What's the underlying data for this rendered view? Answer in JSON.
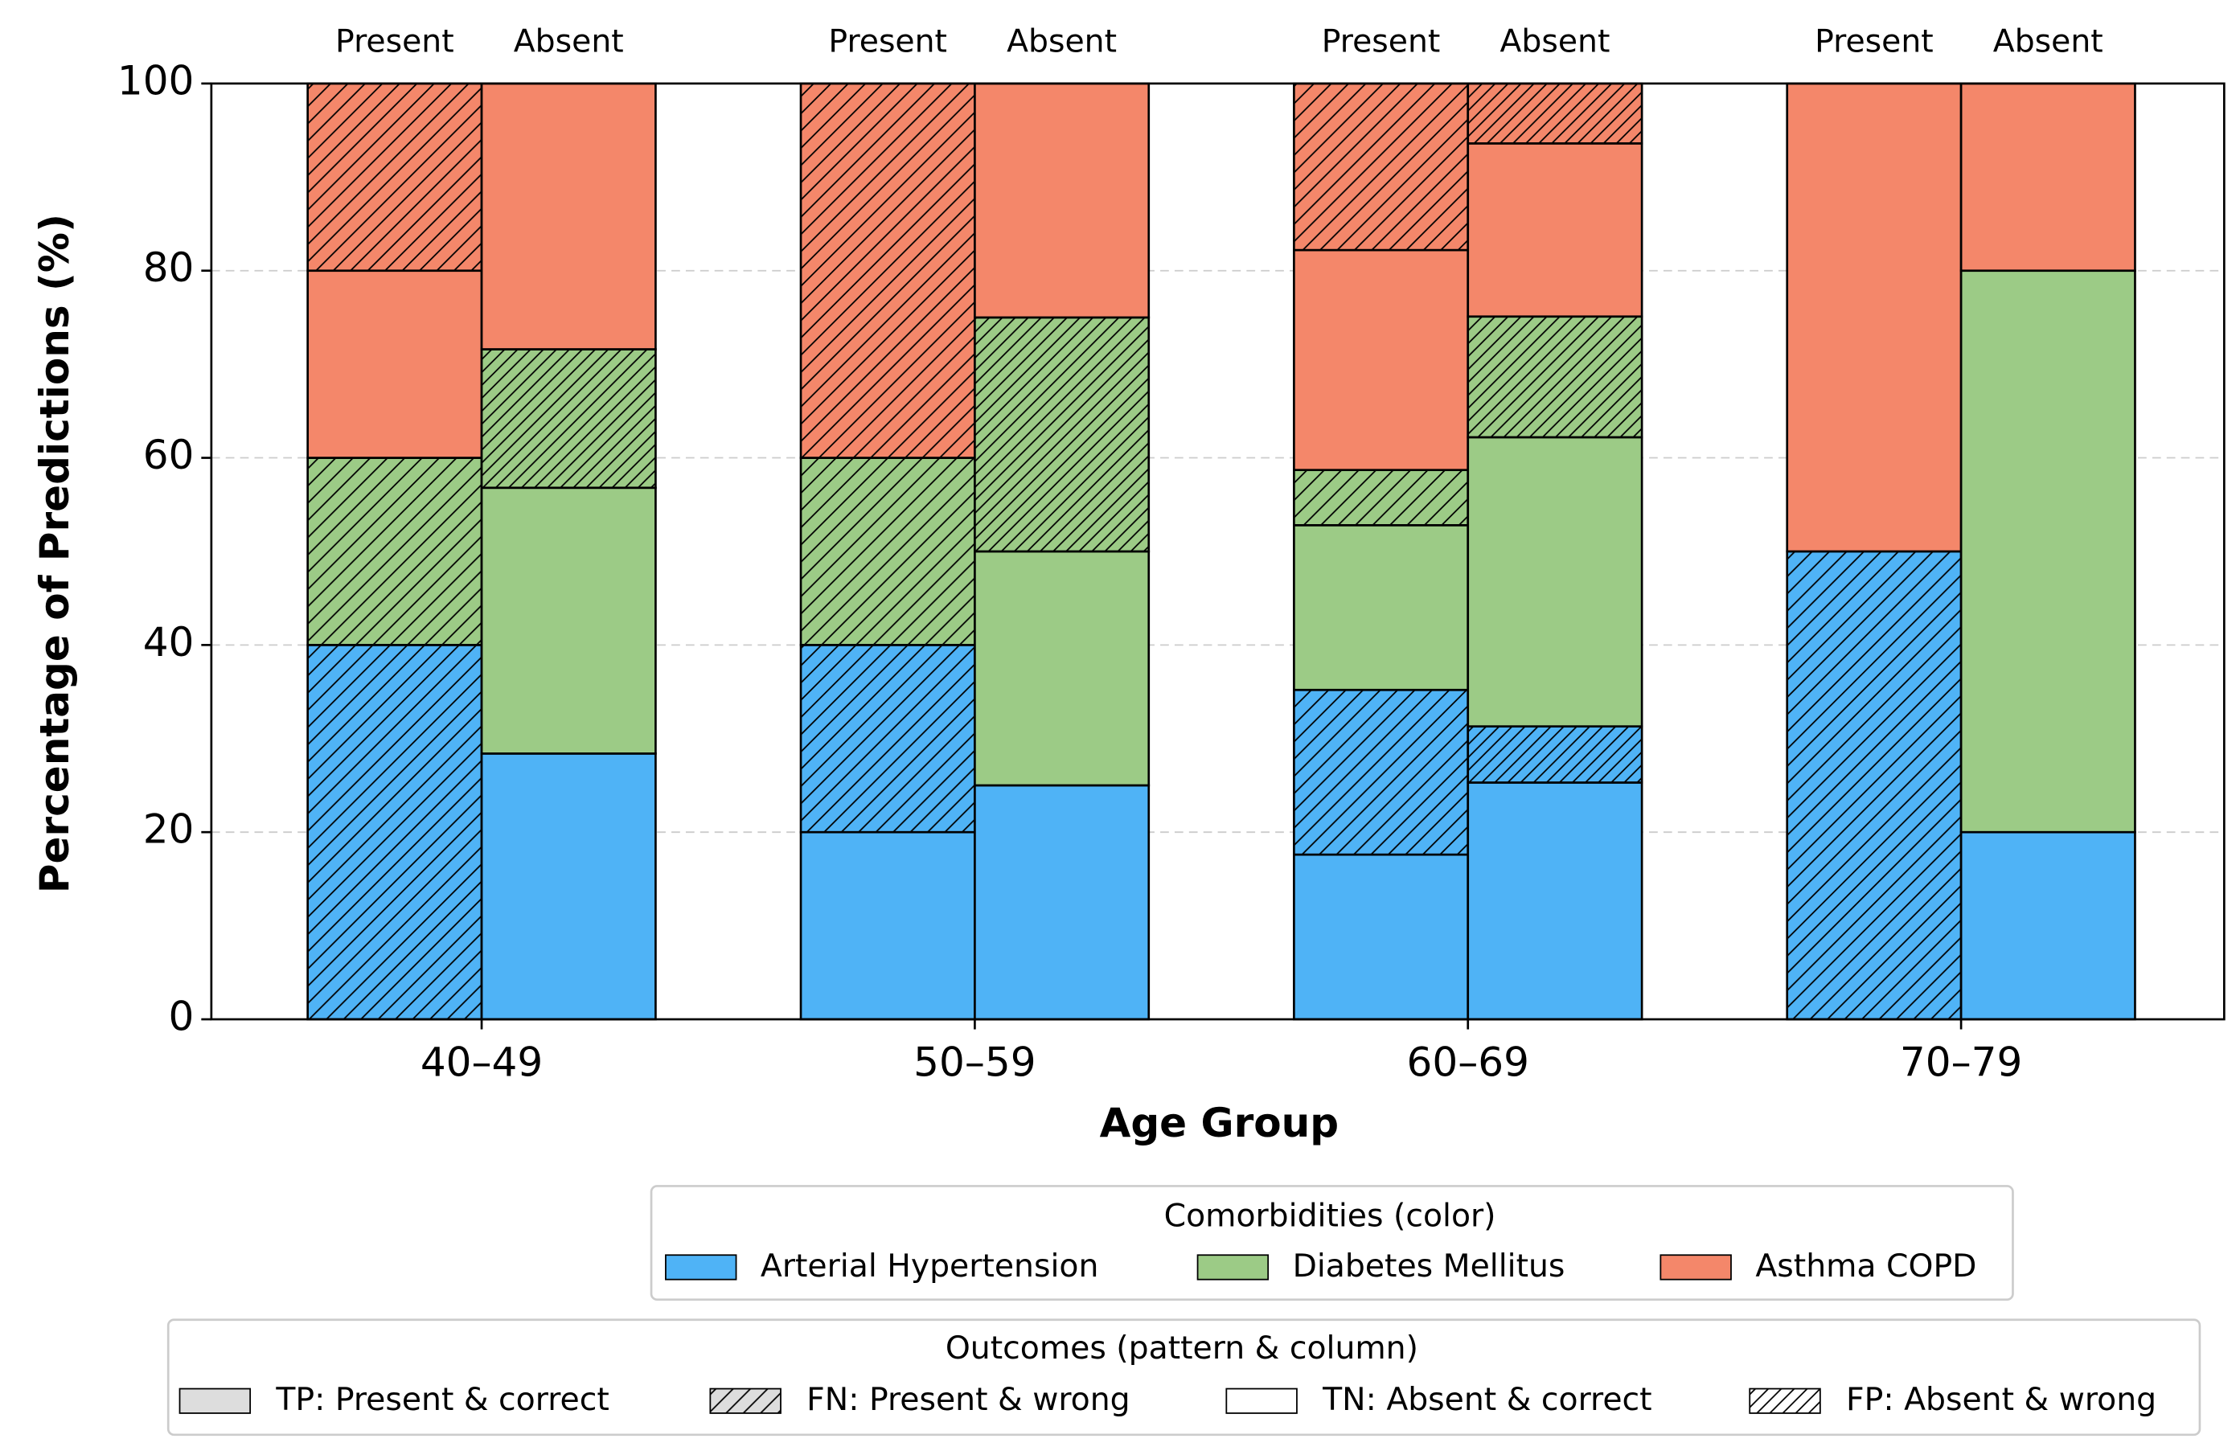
{
  "chart_data": {
    "type": "grouped-stacked-bar",
    "xlabel": "Age Group",
    "ylabel": "Percentage of Predictions (%)",
    "categories": [
      "40–49",
      "50–59",
      "60–69",
      "70–79"
    ],
    "columns": [
      "Present",
      "Absent"
    ],
    "ylim": [
      0,
      100
    ],
    "yticks": [
      0,
      20,
      40,
      60,
      80,
      100
    ],
    "grid": true,
    "comorbidities": {
      "title": "Comorbidities (color)",
      "items": [
        {
          "name": "Arterial Hypertension",
          "color": "#4fb3f6"
        },
        {
          "name": "Diabetes Mellitus",
          "color": "#9ccb86"
        },
        {
          "name": "Asthma COPD",
          "color": "#f4876a"
        }
      ]
    },
    "outcomes": {
      "title": "Outcomes (pattern & column)",
      "items": [
        {
          "name": "TP: Present & correct",
          "fill": "#dddddd",
          "hatch": 0
        },
        {
          "name": "FN: Present & wrong",
          "fill": "#dddddd",
          "hatch": 1
        },
        {
          "name": "TN: Absent & correct",
          "fill": "#ffffff",
          "hatch": 0
        },
        {
          "name": "FP: Absent & wrong",
          "fill": "#ffffff",
          "hatch": 2
        }
      ]
    },
    "stacks": [
      {
        "category": 0,
        "column": 0,
        "segments": [
          {
            "comorbidity": 0,
            "outcome": 1,
            "value": 40
          },
          {
            "comorbidity": 1,
            "outcome": 1,
            "value": 20
          },
          {
            "comorbidity": 2,
            "outcome": 0,
            "value": 20
          },
          {
            "comorbidity": 2,
            "outcome": 1,
            "value": 20
          }
        ]
      },
      {
        "category": 0,
        "column": 1,
        "segments": [
          {
            "comorbidity": 0,
            "outcome": 2,
            "value": 28.4
          },
          {
            "comorbidity": 1,
            "outcome": 2,
            "value": 28.4
          },
          {
            "comorbidity": 1,
            "outcome": 3,
            "value": 14.8
          },
          {
            "comorbidity": 2,
            "outcome": 2,
            "value": 28.4
          }
        ]
      },
      {
        "category": 1,
        "column": 0,
        "segments": [
          {
            "comorbidity": 0,
            "outcome": 0,
            "value": 20
          },
          {
            "comorbidity": 0,
            "outcome": 1,
            "value": 20
          },
          {
            "comorbidity": 1,
            "outcome": 1,
            "value": 20
          },
          {
            "comorbidity": 2,
            "outcome": 1,
            "value": 40
          }
        ]
      },
      {
        "category": 1,
        "column": 1,
        "segments": [
          {
            "comorbidity": 0,
            "outcome": 2,
            "value": 25
          },
          {
            "comorbidity": 1,
            "outcome": 2,
            "value": 25
          },
          {
            "comorbidity": 1,
            "outcome": 3,
            "value": 25
          },
          {
            "comorbidity": 2,
            "outcome": 2,
            "value": 25
          }
        ]
      },
      {
        "category": 2,
        "column": 0,
        "segments": [
          {
            "comorbidity": 0,
            "outcome": 0,
            "value": 17.6
          },
          {
            "comorbidity": 0,
            "outcome": 1,
            "value": 17.6
          },
          {
            "comorbidity": 1,
            "outcome": 0,
            "value": 17.6
          },
          {
            "comorbidity": 1,
            "outcome": 1,
            "value": 5.9
          },
          {
            "comorbidity": 2,
            "outcome": 0,
            "value": 23.5
          },
          {
            "comorbidity": 2,
            "outcome": 1,
            "value": 17.8
          }
        ]
      },
      {
        "category": 2,
        "column": 1,
        "segments": [
          {
            "comorbidity": 0,
            "outcome": 2,
            "value": 25.3
          },
          {
            "comorbidity": 0,
            "outcome": 3,
            "value": 6
          },
          {
            "comorbidity": 1,
            "outcome": 2,
            "value": 30.9
          },
          {
            "comorbidity": 1,
            "outcome": 3,
            "value": 12.9
          },
          {
            "comorbidity": 2,
            "outcome": 2,
            "value": 18.5
          },
          {
            "comorbidity": 2,
            "outcome": 3,
            "value": 6.4
          }
        ]
      },
      {
        "category": 3,
        "column": 0,
        "segments": [
          {
            "comorbidity": 0,
            "outcome": 1,
            "value": 50
          },
          {
            "comorbidity": 2,
            "outcome": 0,
            "value": 50
          }
        ]
      },
      {
        "category": 3,
        "column": 1,
        "segments": [
          {
            "comorbidity": 0,
            "outcome": 2,
            "value": 20
          },
          {
            "comorbidity": 1,
            "outcome": 2,
            "value": 60
          },
          {
            "comorbidity": 2,
            "outcome": 2,
            "value": 20
          }
        ]
      }
    ]
  }
}
